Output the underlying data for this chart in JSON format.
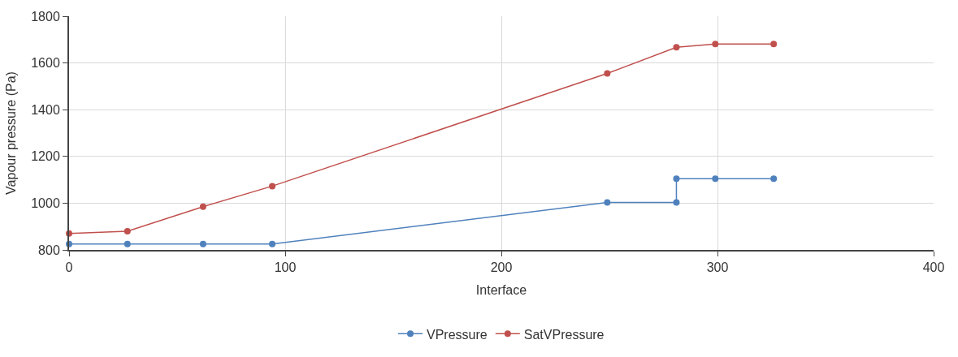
{
  "chart_data": {
    "type": "line",
    "xlabel": "Interface",
    "ylabel": "Vapour pressure (Pa)",
    "xlim": [
      0,
      400
    ],
    "xticks": [
      0,
      100,
      200,
      300,
      400
    ],
    "ylim": [
      800,
      1800
    ],
    "yticks": [
      800,
      1000,
      1200,
      1400,
      1600,
      1800
    ],
    "grid": true,
    "legend": "bottom",
    "marker": "circle",
    "line_style": "solid",
    "series": [
      {
        "name": "VPressure",
        "color": "#4f81bd",
        "x": [
          0,
          27,
          62,
          94,
          249,
          281,
          281,
          299,
          326
        ],
        "values": [
          825,
          825,
          825,
          825,
          1003,
          1003,
          1105,
          1105,
          1105
        ]
      },
      {
        "name": "SatVPressure",
        "color": "#c0504d",
        "x": [
          0,
          27,
          62,
          94,
          249,
          281,
          299,
          326
        ],
        "values": [
          870,
          880,
          985,
          1073,
          1555,
          1667,
          1681,
          1681
        ]
      }
    ]
  }
}
